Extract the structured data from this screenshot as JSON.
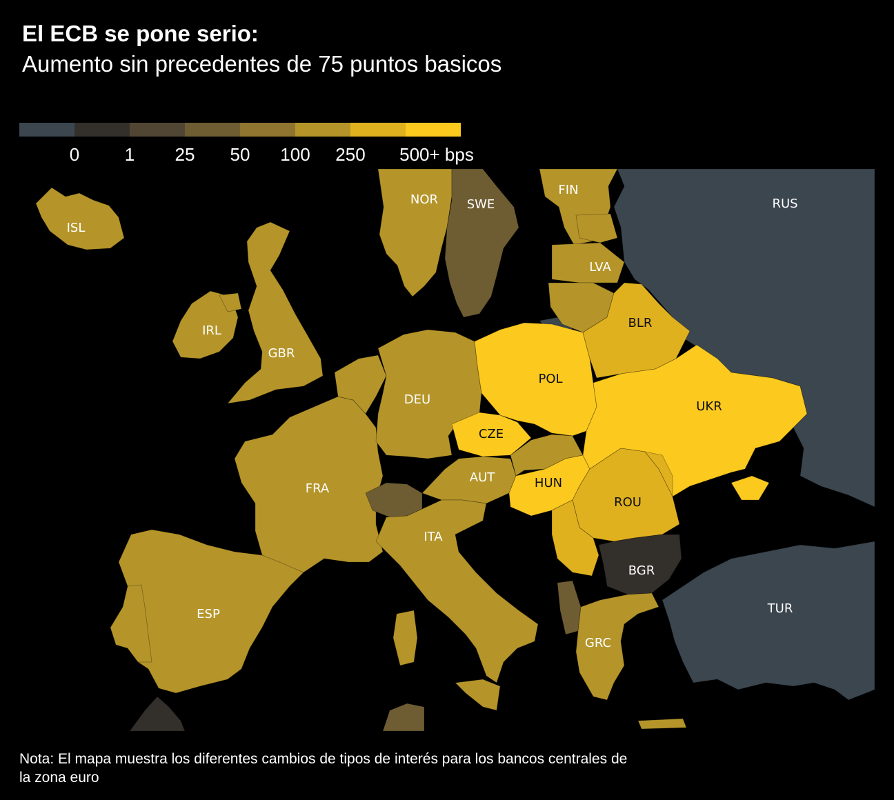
{
  "title": "El ECB se pone serio:",
  "subtitle": "Aumento sin precedentes de 75 puntos basicos",
  "legend": {
    "colors": [
      "#3b464f",
      "#332f2b",
      "#514633",
      "#6e5d33",
      "#8f7530",
      "#b5952a",
      "#e0b11f",
      "#fcc91f"
    ],
    "labels": [
      "0",
      "1",
      "25",
      "50",
      "100",
      "250",
      "500+ bps"
    ]
  },
  "map": {
    "background_sea": "#000000",
    "countries": [
      {
        "code": "ISL",
        "label": "ISL",
        "bin": "250"
      },
      {
        "code": "NOR",
        "label": "NOR",
        "bin": "250"
      },
      {
        "code": "SWE",
        "label": "SWE",
        "bin": "50"
      },
      {
        "code": "FIN",
        "label": "FIN",
        "bin": "250"
      },
      {
        "code": "RUS",
        "label": "RUS",
        "bin": "0"
      },
      {
        "code": "LVA",
        "label": "LVA",
        "bin": "250"
      },
      {
        "code": "IRL",
        "label": "IRL",
        "bin": "250"
      },
      {
        "code": "GBR",
        "label": "GBR",
        "bin": "250"
      },
      {
        "code": "BLR",
        "label": "BLR",
        "bin": "500+"
      },
      {
        "code": "POL",
        "label": "POL",
        "bin": "500+"
      },
      {
        "code": "DEU",
        "label": "DEU",
        "bin": "250"
      },
      {
        "code": "UKR",
        "label": "UKR",
        "bin": "500+"
      },
      {
        "code": "CZE",
        "label": "CZE",
        "bin": "500+"
      },
      {
        "code": "AUT",
        "label": "AUT",
        "bin": "250"
      },
      {
        "code": "HUN",
        "label": "HUN",
        "bin": "500+"
      },
      {
        "code": "FRA",
        "label": "FRA",
        "bin": "250"
      },
      {
        "code": "ROU",
        "label": "ROU",
        "bin": "500+"
      },
      {
        "code": "ITA",
        "label": "ITA",
        "bin": "250"
      },
      {
        "code": "BGR",
        "label": "BGR",
        "bin": "1"
      },
      {
        "code": "ESP",
        "label": "ESP",
        "bin": "250"
      },
      {
        "code": "TUR",
        "label": "TUR",
        "bin": "0"
      },
      {
        "code": "GRC",
        "label": "GRC",
        "bin": "250"
      }
    ]
  },
  "note": "Nota: El mapa muestra los diferentes cambios de tipos de interés para los bancos centrales de la zona euro"
}
